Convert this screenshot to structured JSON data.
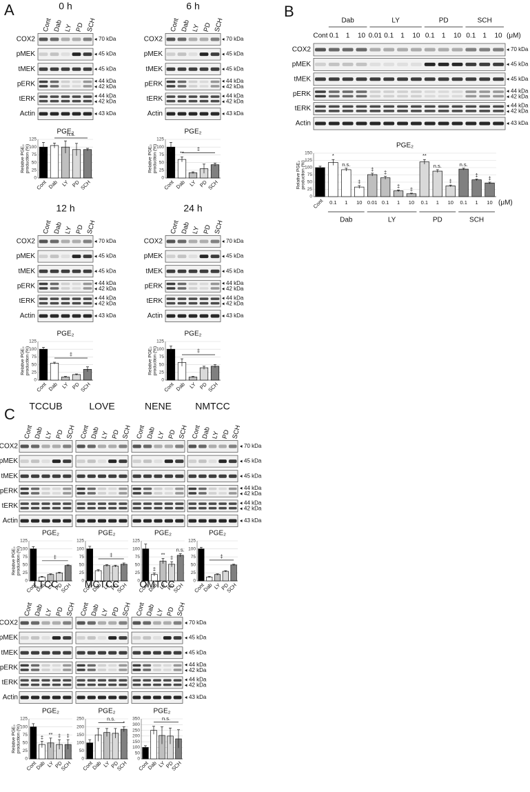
{
  "panel_a": {
    "label": "A",
    "blots": [
      {
        "title": "0 h",
        "lanes": [
          "Cont",
          "Dab",
          "LY",
          "PD",
          "SCH"
        ],
        "proteins": [
          "COX2",
          "pMEK",
          "tMEK",
          "pERK",
          "tERK",
          "Actin"
        ],
        "markers": [
          [
            "70 kDa"
          ],
          [
            "45 kDa"
          ],
          [
            "45 kDa"
          ],
          [
            "44 kDa",
            "42 kDa"
          ],
          [
            "44 kDa",
            "42 kDa"
          ],
          [
            "43 kDa"
          ]
        ]
      },
      {
        "title": "6 h",
        "lanes": [
          "Cont",
          "Dab",
          "LY",
          "PD",
          "SCH"
        ],
        "proteins": [
          "COX2",
          "pMEK",
          "tMEK",
          "pERK",
          "tERK",
          "Actin"
        ],
        "markers": [
          [
            "70 kDa"
          ],
          [
            "45 kDa"
          ],
          [
            "45 kDa"
          ],
          [
            "44 kDa",
            "42 kDa"
          ],
          [
            "44 kDa",
            "42 kDa"
          ],
          [
            "43 kDa"
          ]
        ]
      },
      {
        "title": "12 h",
        "lanes": [
          "Cont",
          "Dab",
          "LY",
          "PD",
          "SCH"
        ],
        "proteins": [
          "COX2",
          "pMEK",
          "tMEK",
          "pERK",
          "tERK",
          "Actin"
        ],
        "markers": [
          [
            "70 kDa"
          ],
          [
            "45 kDa"
          ],
          [
            "45 kDa"
          ],
          [
            "44 kDa",
            "42 kDa"
          ],
          [
            "44 kDa",
            "42 kDa"
          ],
          [
            "43 kDa"
          ]
        ]
      },
      {
        "title": "24 h",
        "lanes": [
          "Cont",
          "Dab",
          "LY",
          "PD",
          "SCH"
        ],
        "proteins": [
          "COX2",
          "pMEK",
          "tMEK",
          "pERK",
          "tERK",
          "Actin"
        ],
        "markers": [
          [
            "70 kDa"
          ],
          [
            "45 kDa"
          ],
          [
            "45 kDa"
          ],
          [
            "44 kDa",
            "42 kDa"
          ],
          [
            "44 kDa",
            "42 kDa"
          ],
          [
            "43 kDa"
          ]
        ]
      }
    ]
  },
  "panel_b": {
    "label": "B",
    "groups": [
      "Dab",
      "LY",
      "PD",
      "SCH"
    ],
    "unit": "(μM)",
    "lanes": [
      "Cont",
      "0.1",
      "1",
      "10",
      "0.01",
      "0.1",
      "1",
      "10",
      "0.1",
      "1",
      "10",
      "0.1",
      "1",
      "10"
    ],
    "proteins": [
      "COX2",
      "pMEK",
      "tMEK",
      "pERK",
      "tERK",
      "Actin"
    ],
    "markers": [
      [
        "70 kDa"
      ],
      [
        "45 kDa"
      ],
      [
        "45 kDa"
      ],
      [
        "44 kDa",
        "42 kDa"
      ],
      [
        "44 kDa",
        "42 kDa"
      ],
      [
        "43 kDa"
      ]
    ]
  },
  "panel_c": {
    "label": "C",
    "rows": [
      {
        "blots": [
          {
            "title": "TCCUB",
            "lanes": [
              "Cont",
              "Dab",
              "LY",
              "PD",
              "SCH"
            ]
          },
          {
            "title": "LOVE",
            "lanes": [
              "Cont",
              "Dab",
              "LY",
              "PD",
              "SCH"
            ]
          },
          {
            "title": "NENE",
            "lanes": [
              "Cont",
              "Dab",
              "LY",
              "PD",
              "SCH"
            ]
          },
          {
            "title": "NMTCC",
            "lanes": [
              "Cont",
              "Dab",
              "LY",
              "PD",
              "SCH"
            ]
          }
        ],
        "proteins": [
          "COX2",
          "pMEK",
          "tMEK",
          "pERK",
          "tERK",
          "Actin"
        ],
        "markers": [
          [
            "70 kDa"
          ],
          [
            "45 kDa"
          ],
          [
            "45 kDa"
          ],
          [
            "44 kDa",
            "42 kDa"
          ],
          [
            "44 kDa",
            "42 kDa"
          ],
          [
            "43 kDa"
          ]
        ]
      },
      {
        "blots": [
          {
            "title": "LTCC",
            "lanes": [
              "Cont",
              "Dab",
              "LY",
              "PD",
              "SCH"
            ]
          },
          {
            "title": "MCTCC",
            "lanes": [
              "Cont",
              "Dab",
              "LY",
              "PD",
              "SCH"
            ]
          },
          {
            "title": "OMTCC",
            "lanes": [
              "Cont",
              "Dab",
              "LY",
              "PD",
              "SCH"
            ]
          }
        ],
        "proteins": [
          "COX2",
          "pMEK",
          "tMEK",
          "pERK",
          "tERK",
          "Actin"
        ],
        "markers": [
          [
            "70 kDa"
          ],
          [
            "45 kDa"
          ],
          [
            "45 kDa"
          ],
          [
            "44 kDa",
            "42 kDa"
          ],
          [
            "44 kDa",
            "42 kDa"
          ],
          [
            "43 kDa"
          ]
        ]
      }
    ]
  },
  "chart_data": [
    {
      "type": "bar",
      "title": "PGE₂",
      "y_label": [
        "Relative PGE₂",
        "production (%)"
      ],
      "categories": [
        "Cont",
        "Dab",
        "LY",
        "PD",
        "SCH"
      ],
      "values": [
        100,
        105,
        100,
        92,
        92
      ],
      "errors": [
        15,
        8,
        20,
        20,
        4
      ],
      "colors": [
        "#000000",
        "#ffffff",
        "#bfbfbf",
        "#d9d9d9",
        "#808080"
      ],
      "ylim": [
        0,
        125
      ],
      "yticks": [
        0,
        25,
        50,
        75,
        100,
        125
      ],
      "grid": true,
      "bracket_label": "n.s."
    },
    {
      "type": "bar",
      "title": "PGE₂",
      "y_label": [
        "Relative PGE₂",
        "production (%)"
      ],
      "categories": [
        "Cont",
        "Dab",
        "LY",
        "PD",
        "SCH"
      ],
      "values": [
        100,
        60,
        17,
        30,
        43
      ],
      "errors": [
        15,
        8,
        3,
        15,
        5
      ],
      "colors": [
        "#000000",
        "#ffffff",
        "#bfbfbf",
        "#d9d9d9",
        "#808080"
      ],
      "ylim": [
        0,
        125
      ],
      "yticks": [
        0,
        25,
        50,
        75,
        100,
        125
      ],
      "grid": true,
      "bar_labels": [
        null,
        "**",
        null,
        null,
        null
      ],
      "bracket_label": "‡"
    },
    {
      "type": "bar",
      "title": "PGE₂",
      "y_label": [
        "Relative PGE₂",
        "production (%)"
      ],
      "categories": [
        "Cont",
        "Dab",
        "LY",
        "PD",
        "SCH"
      ],
      "values": [
        100,
        55,
        10,
        18,
        35
      ],
      "errors": [
        6,
        3,
        2,
        2,
        8
      ],
      "colors": [
        "#000000",
        "#ffffff",
        "#bfbfbf",
        "#d9d9d9",
        "#808080"
      ],
      "ylim": [
        0,
        125
      ],
      "yticks": [
        0,
        25,
        50,
        75,
        100,
        125
      ],
      "grid": true,
      "bracket_label": "‡"
    },
    {
      "type": "bar",
      "title": "PGE₂",
      "y_label": [
        "Relative PGE₂",
        "production (%)"
      ],
      "categories": [
        "Cont",
        "Dab",
        "LY",
        "PD",
        "SCH"
      ],
      "values": [
        100,
        57,
        10,
        40,
        45
      ],
      "errors": [
        10,
        12,
        2,
        5,
        5
      ],
      "colors": [
        "#000000",
        "#ffffff",
        "#bfbfbf",
        "#d9d9d9",
        "#808080"
      ],
      "ylim": [
        0,
        125
      ],
      "yticks": [
        0,
        25,
        50,
        75,
        100,
        125
      ],
      "grid": true,
      "bracket_label": "‡"
    },
    {
      "type": "bar",
      "title": "PGE₂",
      "y_label": [
        "Relative PGE₂",
        "production (%)"
      ],
      "categories": [
        "Cont",
        "0.1",
        "1",
        "10",
        "0.01",
        "0.1",
        "1",
        "10",
        "0.1",
        "1",
        "10",
        "0.1",
        "1",
        "10"
      ],
      "values": [
        100,
        118,
        93,
        33,
        76,
        65,
        20,
        10,
        120,
        88,
        37,
        95,
        58,
        47
      ],
      "errors": [
        5,
        10,
        5,
        5,
        5,
        5,
        3,
        2,
        8,
        5,
        3,
        3,
        3,
        3
      ],
      "colors": [
        "#000000",
        "#ffffff",
        "#ffffff",
        "#ffffff",
        "#bfbfbf",
        "#bfbfbf",
        "#bfbfbf",
        "#bfbfbf",
        "#d9d9d9",
        "#d9d9d9",
        "#d9d9d9",
        "#808080",
        "#808080",
        "#808080"
      ],
      "ylim": [
        0,
        150
      ],
      "yticks": [
        0,
        25,
        50,
        75,
        100,
        125,
        150
      ],
      "grid": true,
      "bar_labels": [
        null,
        "*",
        "n.s.",
        "‡",
        "‡",
        "‡",
        "‡",
        "‡",
        "**",
        "n.s.",
        "‡",
        "n.s.",
        "‡",
        "‡"
      ],
      "groups": [
        "Dab",
        "LY",
        "PD",
        "SCH"
      ],
      "unit": "(μM)"
    },
    {
      "type": "bar",
      "title": "PGE₂",
      "y_label": [
        "Relative PGE₂",
        "production (%)"
      ],
      "categories": [
        "Cont",
        "Dab",
        "LY",
        "PD",
        "SCH"
      ],
      "values": [
        100,
        12,
        20,
        25,
        48
      ],
      "errors": [
        7,
        2,
        2,
        2,
        2
      ],
      "colors": [
        "#000000",
        "#ffffff",
        "#bfbfbf",
        "#d9d9d9",
        "#808080"
      ],
      "ylim": [
        0,
        125
      ],
      "yticks": [
        0,
        25,
        50,
        75,
        100,
        125
      ],
      "grid": true,
      "bracket_label": "‡"
    },
    {
      "type": "bar",
      "title": "PGE₂",
      "categories": [
        "Cont",
        "Dab",
        "LY",
        "PD",
        "SCH"
      ],
      "values": [
        100,
        32,
        48,
        46,
        52
      ],
      "errors": [
        8,
        3,
        3,
        3,
        4
      ],
      "colors": [
        "#000000",
        "#ffffff",
        "#bfbfbf",
        "#d9d9d9",
        "#808080"
      ],
      "ylim": [
        0,
        125
      ],
      "yticks": [
        0,
        25,
        50,
        75,
        100,
        125
      ],
      "grid": true,
      "bracket_label": "‡"
    },
    {
      "type": "bar",
      "title": "PGE₂",
      "categories": [
        "Cont",
        "Dab",
        "LY",
        "PD",
        "SCH"
      ],
      "values": [
        100,
        20,
        62,
        52,
        80
      ],
      "errors": [
        15,
        5,
        8,
        8,
        5
      ],
      "colors": [
        "#000000",
        "#ffffff",
        "#bfbfbf",
        "#d9d9d9",
        "#808080"
      ],
      "ylim": [
        0,
        125
      ],
      "yticks": [
        0,
        25,
        50,
        75,
        100,
        125
      ],
      "grid": true,
      "bar_labels": [
        null,
        "‡",
        "**",
        "‡",
        "n.s."
      ]
    },
    {
      "type": "bar",
      "title": "PGE₂",
      "categories": [
        "Cont",
        "Dab",
        "LY",
        "PD",
        "SCH"
      ],
      "values": [
        100,
        12,
        20,
        30,
        50
      ],
      "errors": [
        5,
        2,
        2,
        2,
        2
      ],
      "colors": [
        "#000000",
        "#ffffff",
        "#bfbfbf",
        "#d9d9d9",
        "#808080"
      ],
      "ylim": [
        0,
        125
      ],
      "yticks": [
        0,
        25,
        50,
        75,
        100,
        125
      ],
      "grid": true,
      "bracket_label": "‡"
    },
    {
      "type": "bar",
      "title": "PGE₂",
      "y_label": [
        "Relative PGE₂",
        "production (%)"
      ],
      "categories": [
        "Cont",
        "Dab",
        "LY",
        "PD",
        "SCH"
      ],
      "values": [
        100,
        45,
        50,
        45,
        45
      ],
      "errors": [
        10,
        10,
        15,
        15,
        15
      ],
      "colors": [
        "#000000",
        "#ffffff",
        "#bfbfbf",
        "#d9d9d9",
        "#808080"
      ],
      "ylim": [
        0,
        125
      ],
      "yticks": [
        0,
        25,
        50,
        75,
        100,
        125
      ],
      "grid": true,
      "bar_labels": [
        null,
        "‡",
        "**",
        "‡",
        "‡"
      ]
    },
    {
      "type": "bar",
      "title": "PGE₂",
      "categories": [
        "Cont",
        "Dab",
        "LY",
        "PD",
        "SCH"
      ],
      "values": [
        100,
        150,
        165,
        160,
        185
      ],
      "errors": [
        20,
        40,
        25,
        30,
        15
      ],
      "colors": [
        "#000000",
        "#ffffff",
        "#bfbfbf",
        "#d9d9d9",
        "#808080"
      ],
      "ylim": [
        0,
        250
      ],
      "yticks": [
        0,
        50,
        100,
        150,
        200,
        250
      ],
      "grid": true,
      "bar_labels": [
        null,
        null,
        null,
        null,
        "*"
      ],
      "bracket_label": "n.s."
    },
    {
      "type": "bar",
      "title": "PGE₂",
      "categories": [
        "Cont",
        "Dab",
        "LY",
        "PD",
        "SCH"
      ],
      "values": [
        100,
        250,
        205,
        200,
        175
      ],
      "errors": [
        15,
        35,
        75,
        70,
        80
      ],
      "colors": [
        "#000000",
        "#ffffff",
        "#bfbfbf",
        "#d9d9d9",
        "#808080"
      ],
      "ylim": [
        0,
        350
      ],
      "yticks": [
        0,
        50,
        100,
        150,
        200,
        250,
        300,
        350
      ],
      "grid": true,
      "bracket_label": "n.s."
    }
  ]
}
